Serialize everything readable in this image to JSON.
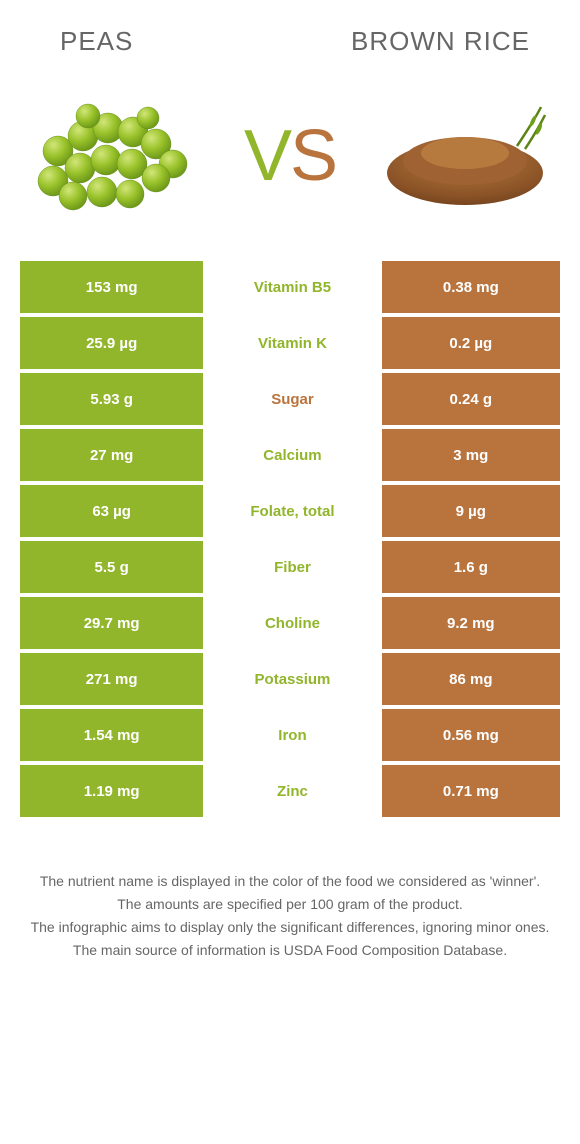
{
  "header": {
    "left_title": "Peas",
    "right_title": "Brown rice"
  },
  "vs": {
    "v": "V",
    "s": "S"
  },
  "colors": {
    "peas_primary": "#91b52b",
    "peas_bar": "#91b52b",
    "rice_primary": "#b9743e",
    "rice_bar": "#b9743e",
    "row_bg_left": "#91b52b",
    "row_bg_right": "#b9743e",
    "text_white": "#ffffff",
    "label_pea": "#91b52b",
    "label_rice": "#b9743e"
  },
  "rows": [
    {
      "left": "153 mg",
      "label": "Vitamin B5",
      "right": "0.38 mg",
      "winner": "left"
    },
    {
      "left": "25.9 µg",
      "label": "Vitamin K",
      "right": "0.2 µg",
      "winner": "left"
    },
    {
      "left": "5.93 g",
      "label": "Sugar",
      "right": "0.24 g",
      "winner": "right"
    },
    {
      "left": "27 mg",
      "label": "Calcium",
      "right": "3 mg",
      "winner": "left"
    },
    {
      "left": "63 µg",
      "label": "Folate, total",
      "right": "9 µg",
      "winner": "left"
    },
    {
      "left": "5.5 g",
      "label": "Fiber",
      "right": "1.6 g",
      "winner": "left"
    },
    {
      "left": "29.7 mg",
      "label": "Choline",
      "right": "9.2 mg",
      "winner": "left"
    },
    {
      "left": "271 mg",
      "label": "Potassium",
      "right": "86 mg",
      "winner": "left"
    },
    {
      "left": "1.54 mg",
      "label": "Iron",
      "right": "0.56 mg",
      "winner": "left"
    },
    {
      "left": "1.19 mg",
      "label": "Zinc",
      "right": "0.71 mg",
      "winner": "left"
    }
  ],
  "footer": {
    "line1": "The nutrient name is displayed in the color of the food we considered as 'winner'.",
    "line2": "The amounts are specified per 100 gram of the product.",
    "line3": "The infographic aims to display only the significant differences, ignoring minor ones.",
    "line4": "The main source of information is USDA Food Composition Database."
  }
}
